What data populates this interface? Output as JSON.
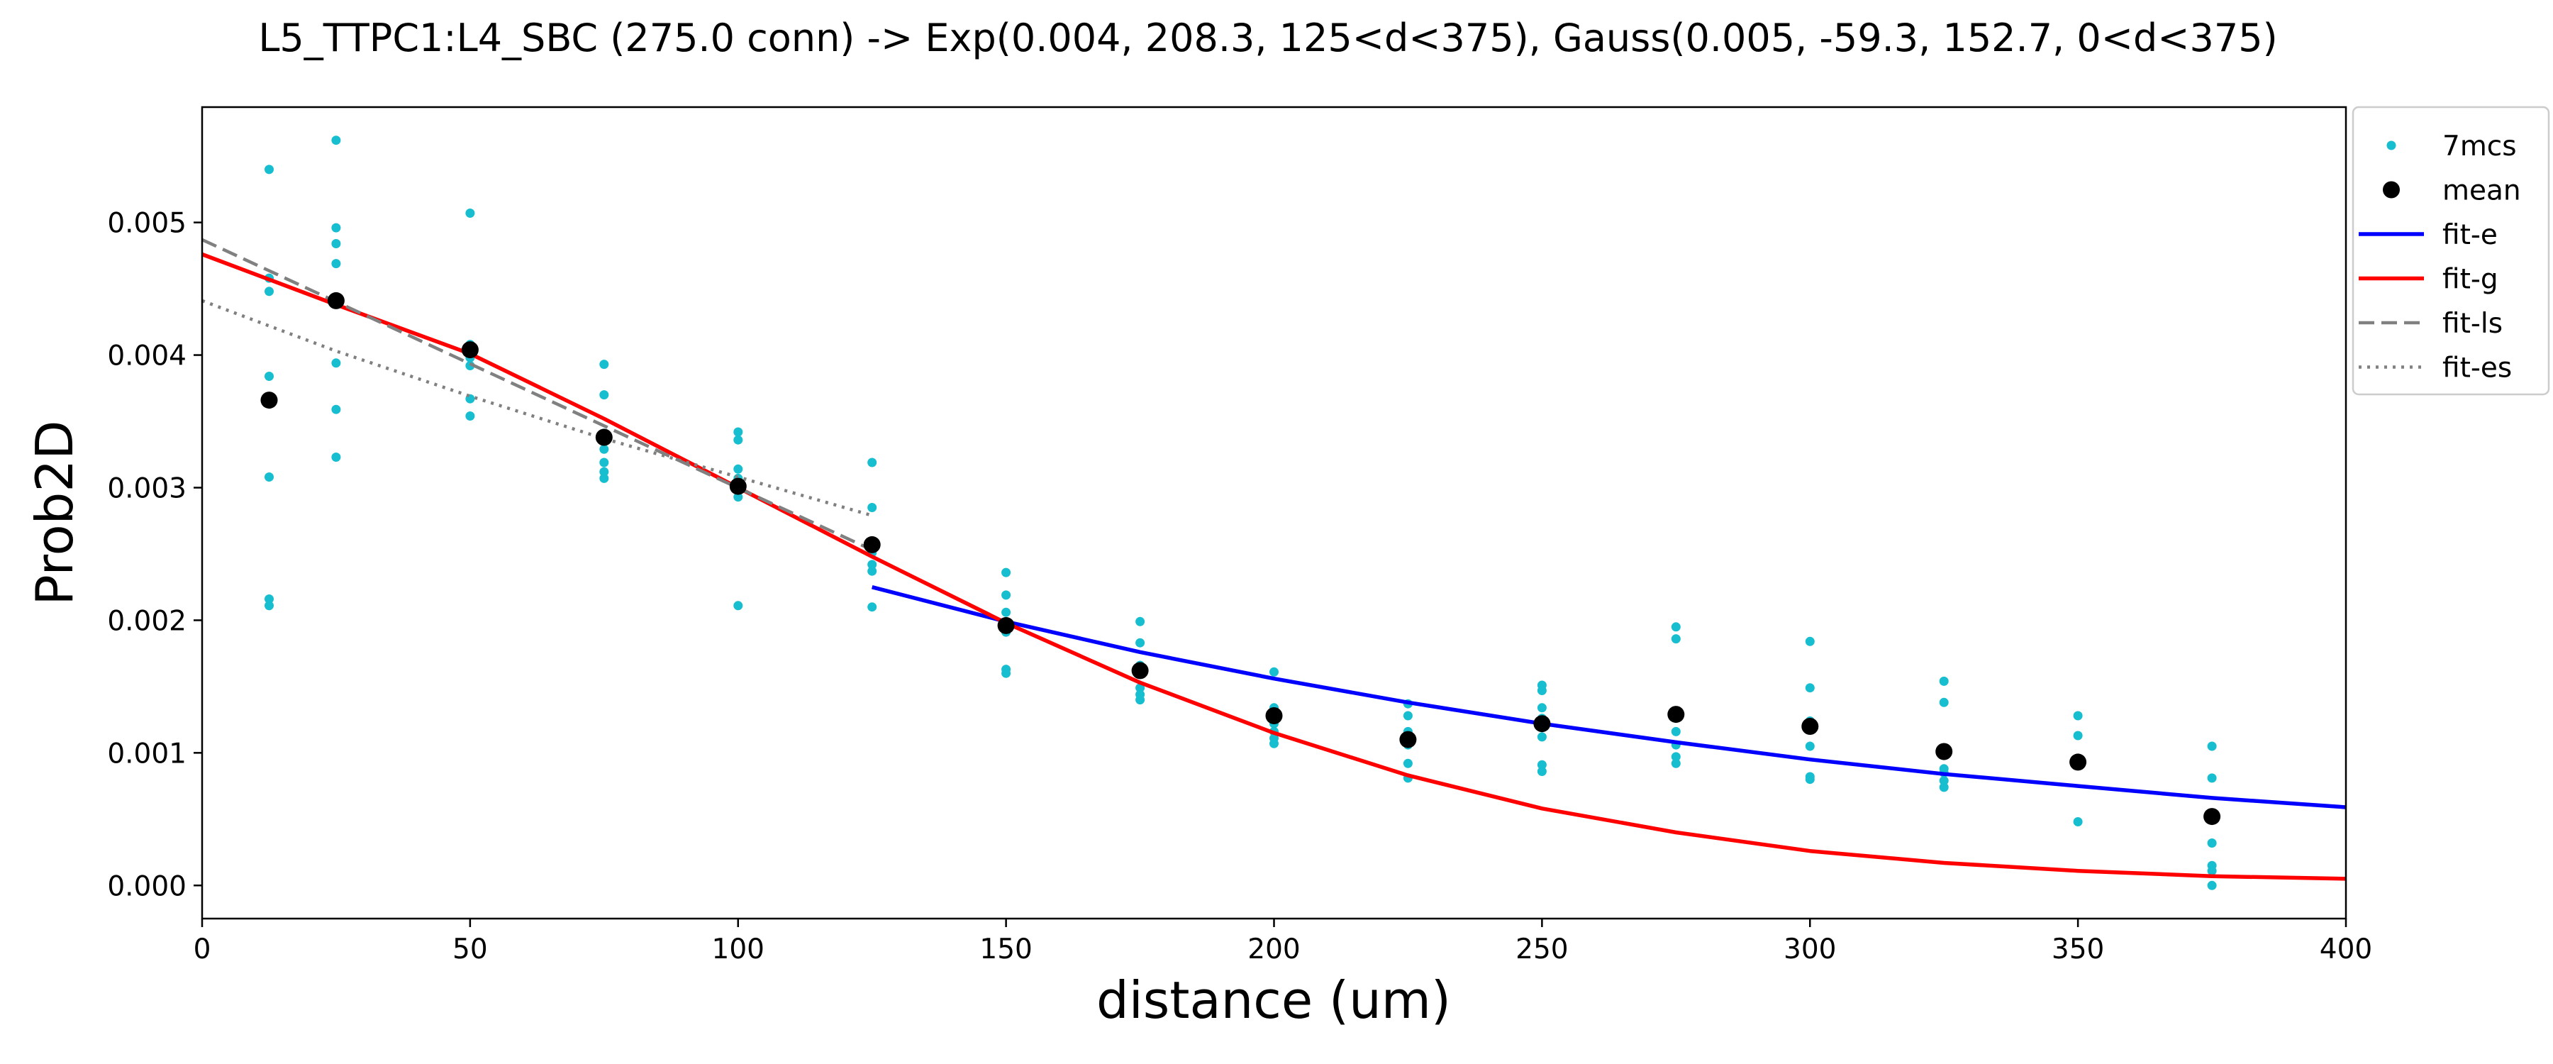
{
  "chart_data": {
    "type": "scatter",
    "title": "L5_TTPC1:L4_SBC (275.0 conn) -> Exp(0.004, 208.3, 125<d<375), Gauss(0.005, -59.3, 152.7, 0<d<375)",
    "xlabel": "distance (um)",
    "ylabel": "Prob2D",
    "xlim": [
      0,
      400
    ],
    "ylim": [
      -0.00025,
      0.00587
    ],
    "x_ticks": [
      0,
      50,
      100,
      150,
      200,
      250,
      300,
      350,
      400
    ],
    "y_ticks": [
      0.0,
      0.001,
      0.002,
      0.003,
      0.004,
      0.005
    ],
    "y_tick_labels": [
      "0.000",
      "0.001",
      "0.002",
      "0.003",
      "0.004",
      "0.005"
    ],
    "legend_position": "outside-top-right",
    "grid": false,
    "series": [
      {
        "name": "7mcs",
        "kind": "scatter",
        "color": "#17becf",
        "points": [
          [
            12.5,
            0.0054
          ],
          [
            12.5,
            0.00458
          ],
          [
            12.5,
            0.00448
          ],
          [
            12.5,
            0.00384
          ],
          [
            12.5,
            0.00308
          ],
          [
            12.5,
            0.00216
          ],
          [
            12.5,
            0.00211
          ],
          [
            25,
            0.00562
          ],
          [
            25,
            0.00496
          ],
          [
            25,
            0.00484
          ],
          [
            25,
            0.00469
          ],
          [
            25,
            0.00441
          ],
          [
            25,
            0.00394
          ],
          [
            25,
            0.00359
          ],
          [
            25,
            0.00323
          ],
          [
            50,
            0.00507
          ],
          [
            50,
            0.00408
          ],
          [
            50,
            0.00402
          ],
          [
            50,
            0.00398
          ],
          [
            50,
            0.00392
          ],
          [
            50,
            0.00367
          ],
          [
            50,
            0.00354
          ],
          [
            75,
            0.00393
          ],
          [
            75,
            0.0037
          ],
          [
            75,
            0.00341
          ],
          [
            75,
            0.00329
          ],
          [
            75,
            0.00319
          ],
          [
            75,
            0.00312
          ],
          [
            75,
            0.00307
          ],
          [
            100,
            0.00342
          ],
          [
            100,
            0.00336
          ],
          [
            100,
            0.00314
          ],
          [
            100,
            0.00307
          ],
          [
            100,
            0.00299
          ],
          [
            100,
            0.00293
          ],
          [
            100,
            0.00211
          ],
          [
            125,
            0.00319
          ],
          [
            125,
            0.00285
          ],
          [
            125,
            0.00257
          ],
          [
            125,
            0.00251
          ],
          [
            125,
            0.00242
          ],
          [
            125,
            0.00237
          ],
          [
            125,
            0.0021
          ],
          [
            150,
            0.00236
          ],
          [
            150,
            0.00219
          ],
          [
            150,
            0.00206
          ],
          [
            150,
            0.00198
          ],
          [
            150,
            0.00191
          ],
          [
            150,
            0.00163
          ],
          [
            150,
            0.0016
          ],
          [
            175,
            0.00199
          ],
          [
            175,
            0.00183
          ],
          [
            175,
            0.00166
          ],
          [
            175,
            0.00149
          ],
          [
            175,
            0.00144
          ],
          [
            175,
            0.0014
          ],
          [
            200,
            0.00161
          ],
          [
            200,
            0.00134
          ],
          [
            200,
            0.0013
          ],
          [
            200,
            0.00122
          ],
          [
            200,
            0.00116
          ],
          [
            200,
            0.00111
          ],
          [
            200,
            0.00107
          ],
          [
            225,
            0.00137
          ],
          [
            225,
            0.00128
          ],
          [
            225,
            0.00116
          ],
          [
            225,
            0.00106
          ],
          [
            225,
            0.00092
          ],
          [
            225,
            0.00081
          ],
          [
            250,
            0.00151
          ],
          [
            250,
            0.00147
          ],
          [
            250,
            0.00134
          ],
          [
            250,
            0.00126
          ],
          [
            250,
            0.00112
          ],
          [
            250,
            0.00091
          ],
          [
            250,
            0.00086
          ],
          [
            275,
            0.00195
          ],
          [
            275,
            0.00186
          ],
          [
            275,
            0.00127
          ],
          [
            275,
            0.00116
          ],
          [
            275,
            0.00106
          ],
          [
            275,
            0.00097
          ],
          [
            275,
            0.00092
          ],
          [
            300,
            0.00184
          ],
          [
            300,
            0.00149
          ],
          [
            300,
            0.00124
          ],
          [
            300,
            0.00105
          ],
          [
            300,
            0.00082
          ],
          [
            300,
            0.0008
          ],
          [
            325,
            0.00154
          ],
          [
            325,
            0.00138
          ],
          [
            325,
            0.00098
          ],
          [
            325,
            0.00088
          ],
          [
            325,
            0.00085
          ],
          [
            325,
            0.00079
          ],
          [
            325,
            0.00074
          ],
          [
            350,
            0.00128
          ],
          [
            350,
            0.00113
          ],
          [
            350,
            0.00094
          ],
          [
            350,
            0.00091
          ],
          [
            350,
            0.00048
          ],
          [
            375,
            0.00105
          ],
          [
            375,
            0.00081
          ],
          [
            375,
            0.00032
          ],
          [
            375,
            0.00015
          ],
          [
            375,
            0.00011
          ],
          [
            375,
            0.0
          ]
        ]
      },
      {
        "name": "mean",
        "kind": "scatter",
        "color": "#000000",
        "points": [
          [
            12.5,
            0.00366
          ],
          [
            25,
            0.00441
          ],
          [
            50,
            0.00404
          ],
          [
            75,
            0.00338
          ],
          [
            100,
            0.00301
          ],
          [
            125,
            0.00257
          ],
          [
            150,
            0.00196
          ],
          [
            175,
            0.00162
          ],
          [
            200,
            0.00128
          ],
          [
            225,
            0.0011
          ],
          [
            250,
            0.00122
          ],
          [
            275,
            0.00129
          ],
          [
            300,
            0.0012
          ],
          [
            325,
            0.00101
          ],
          [
            350,
            0.00093
          ],
          [
            375,
            0.00052
          ]
        ]
      },
      {
        "name": "fit-e",
        "kind": "line",
        "color": "#0000ff",
        "dash": "solid",
        "points": [
          [
            125,
            0.00225
          ],
          [
            150,
            0.00199
          ],
          [
            175,
            0.00176
          ],
          [
            200,
            0.00156
          ],
          [
            225,
            0.00138
          ],
          [
            250,
            0.00122
          ],
          [
            275,
            0.00108
          ],
          [
            300,
            0.00095
          ],
          [
            325,
            0.00084
          ],
          [
            350,
            0.00075
          ],
          [
            375,
            0.00066
          ],
          [
            400,
            0.00059
          ]
        ]
      },
      {
        "name": "fit-g",
        "kind": "line",
        "color": "#ff0000",
        "dash": "solid",
        "points": [
          [
            0,
            0.00476
          ],
          [
            25,
            0.00438
          ],
          [
            50,
            0.00401
          ],
          [
            75,
            0.00352
          ],
          [
            100,
            0.003
          ],
          [
            125,
            0.00248
          ],
          [
            150,
            0.00198
          ],
          [
            175,
            0.00153
          ],
          [
            200,
            0.00115
          ],
          [
            225,
            0.00083
          ],
          [
            250,
            0.00058
          ],
          [
            275,
            0.0004
          ],
          [
            300,
            0.00026
          ],
          [
            325,
            0.00017
          ],
          [
            350,
            0.00011
          ],
          [
            375,
            7e-05
          ],
          [
            400,
            5e-05
          ]
        ]
      },
      {
        "name": "fit-ls",
        "kind": "line",
        "color": "#808080",
        "dash": "dashed",
        "points": [
          [
            0,
            0.00487
          ],
          [
            125,
            0.00253
          ]
        ]
      },
      {
        "name": "fit-es",
        "kind": "line",
        "color": "#808080",
        "dash": "dotted",
        "points": [
          [
            0,
            0.00441
          ],
          [
            25,
            0.00403
          ],
          [
            50,
            0.00369
          ],
          [
            75,
            0.00337
          ],
          [
            100,
            0.00308
          ],
          [
            125,
            0.00279
          ]
        ]
      }
    ]
  }
}
